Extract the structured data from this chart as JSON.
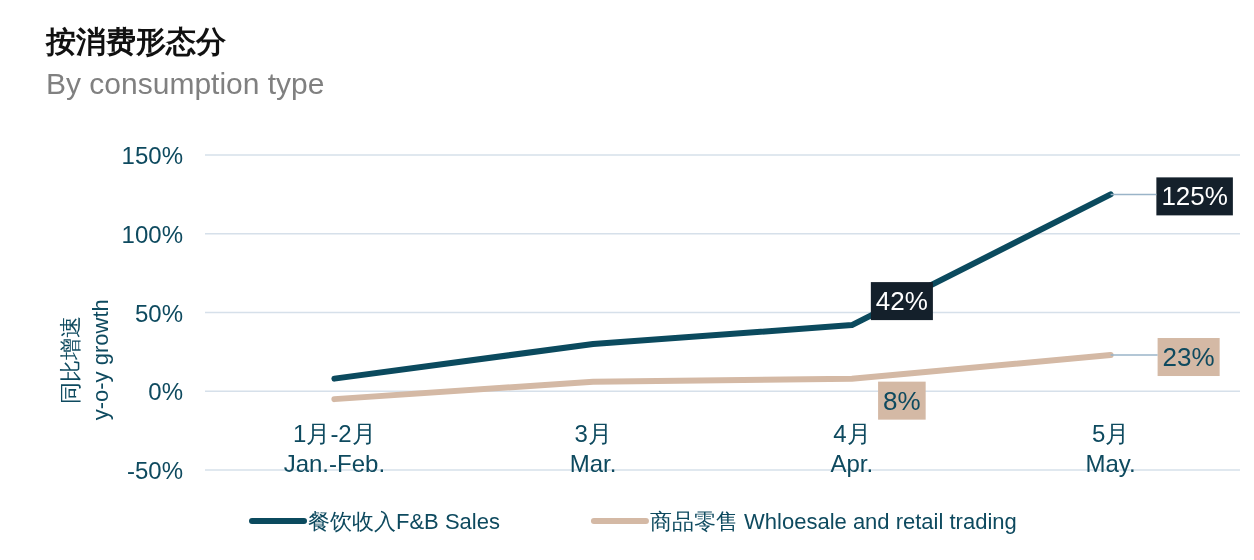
{
  "chart_data": {
    "type": "line",
    "title": "按消费形态分",
    "subtitle": "By consumption type",
    "ylabel": "同比增速\ny-o-y growth",
    "categories": [
      "1月-2月\nJan.-Feb.",
      "3月\nMar.",
      "4月\nApr.",
      "5月\nMay."
    ],
    "series": [
      {
        "name": "餐饮收入F&B Sales",
        "color": "#0b4a5e",
        "values": [
          8,
          30,
          42,
          125
        ],
        "value_labels": [
          null,
          null,
          "42%",
          "125%"
        ]
      },
      {
        "name": "商品零售 Whloesale and retail trading",
        "color": "#d4b9a5",
        "values": [
          -5,
          6,
          8,
          23
        ],
        "value_labels": [
          null,
          null,
          "8%",
          "23%"
        ]
      }
    ],
    "ylim": [
      -50,
      150
    ],
    "yticks": [
      {
        "value": -50,
        "label": "-50%"
      },
      {
        "value": 0,
        "label": "0%"
      },
      {
        "value": 50,
        "label": "50%"
      },
      {
        "value": 100,
        "label": "100%"
      },
      {
        "value": 150,
        "label": "150%"
      }
    ],
    "grid": "y",
    "legend": "bottom",
    "marker": "none",
    "line_style": "solid"
  }
}
